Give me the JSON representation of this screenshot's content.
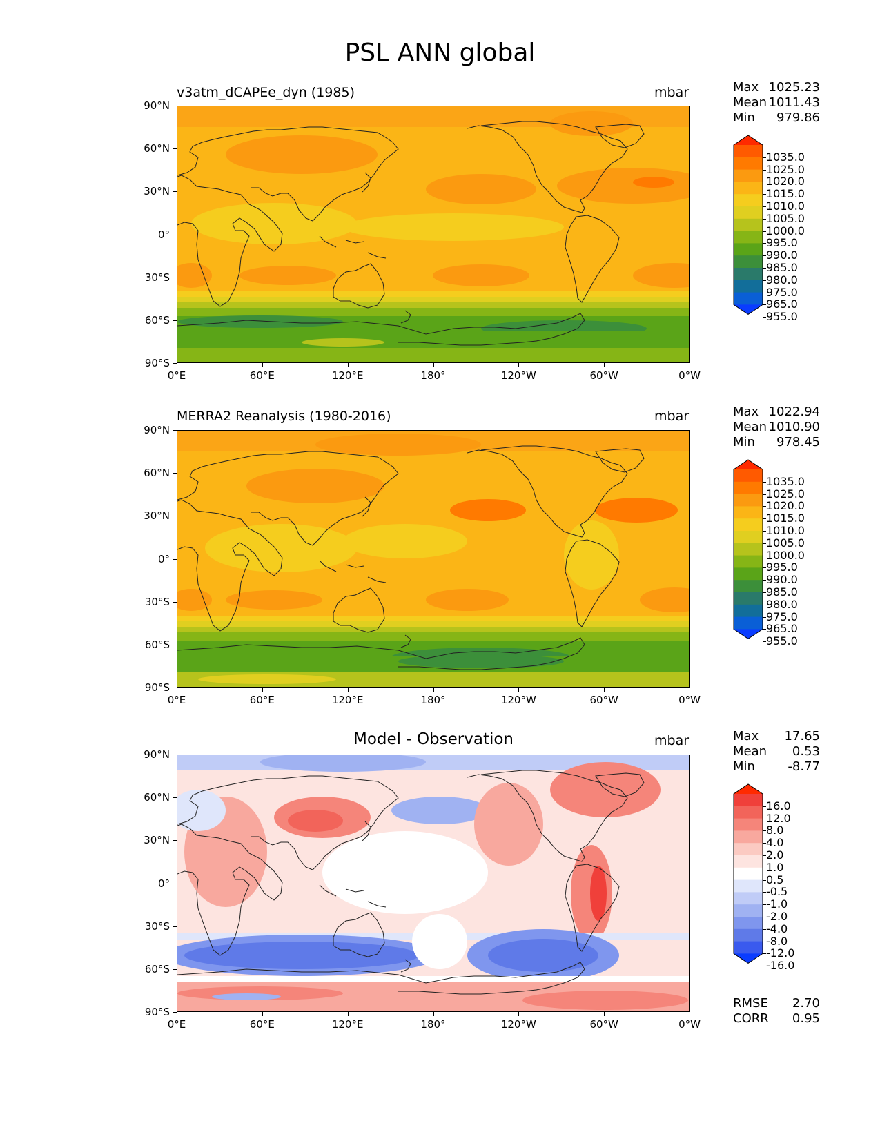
{
  "title": "PSL ANN global",
  "lat_labels": [
    "90°N",
    "60°N",
    "30°N",
    "0°",
    "30°S",
    "60°S",
    "90°S"
  ],
  "lon_labels": [
    "0°E",
    "60°E",
    "120°E",
    "180°",
    "120°W",
    "60°W",
    "0°W"
  ],
  "panels": [
    {
      "title": "v3atm_dCAPEe_dyn (1985)",
      "units": "mbar",
      "stats": {
        "max_label": "Max",
        "max": "1025.23",
        "mean_label": "Mean",
        "mean": "1011.43",
        "min_label": "Min",
        "min": "979.86"
      },
      "colorbar": {
        "levels": [
          "1035.0",
          "1025.0",
          "1020.0",
          "1015.0",
          "1010.0",
          "1005.0",
          "1000.0",
          "995.0",
          "990.0",
          "985.0",
          "980.0",
          "975.0",
          "965.0",
          "955.0"
        ],
        "colors": [
          "#ff2a00",
          "#ff5a00",
          "#ff7a00",
          "#fb9a10",
          "#fbb516",
          "#f5cd1e",
          "#e0cf20",
          "#b6c31c",
          "#86b516",
          "#5aa418",
          "#3c8f3a",
          "#2a7a6a",
          "#126e9a",
          "#0a5fd6",
          "#0a3cff"
        ]
      }
    },
    {
      "title": "MERRA2 Reanalysis (1980-2016)",
      "units": "mbar",
      "stats": {
        "max_label": "Max",
        "max": "1022.94",
        "mean_label": "Mean",
        "mean": "1010.90",
        "min_label": "Min",
        "min": "978.45"
      },
      "colorbar": {
        "levels": [
          "1035.0",
          "1025.0",
          "1020.0",
          "1015.0",
          "1010.0",
          "1005.0",
          "1000.0",
          "995.0",
          "990.0",
          "985.0",
          "980.0",
          "975.0",
          "965.0",
          "955.0"
        ],
        "colors": [
          "#ff2a00",
          "#ff5a00",
          "#ff7a00",
          "#fb9a10",
          "#fbb516",
          "#f5cd1e",
          "#e0cf20",
          "#b6c31c",
          "#86b516",
          "#5aa418",
          "#3c8f3a",
          "#2a7a6a",
          "#126e9a",
          "#0a5fd6",
          "#0a3cff"
        ]
      }
    },
    {
      "title": "Model - Observation",
      "units": "mbar",
      "stats": {
        "max_label": "Max",
        "max": "17.65",
        "mean_label": "Mean",
        "mean": "0.53",
        "min_label": "Min",
        "min": "-8.77"
      },
      "extra": {
        "rmse_label": "RMSE",
        "rmse": "2.70",
        "corr_label": "CORR",
        "corr": "0.95"
      },
      "colorbar": {
        "levels": [
          "16.0",
          "12.0",
          "8.0",
          "4.0",
          "2.0",
          "1.0",
          "0.5",
          "-0.5",
          "-1.0",
          "-2.0",
          "-4.0",
          "-8.0",
          "-12.0",
          "-16.0"
        ],
        "colors": [
          "#ff2a00",
          "#f0403a",
          "#f2645a",
          "#f5857a",
          "#f8a89e",
          "#fbcac2",
          "#fde4e0",
          "#ffffff",
          "#dfe6fb",
          "#c0ccf7",
          "#a0b2f2",
          "#7f96ee",
          "#5f7ae8",
          "#3a5aee",
          "#0a3cff"
        ]
      }
    }
  ]
}
